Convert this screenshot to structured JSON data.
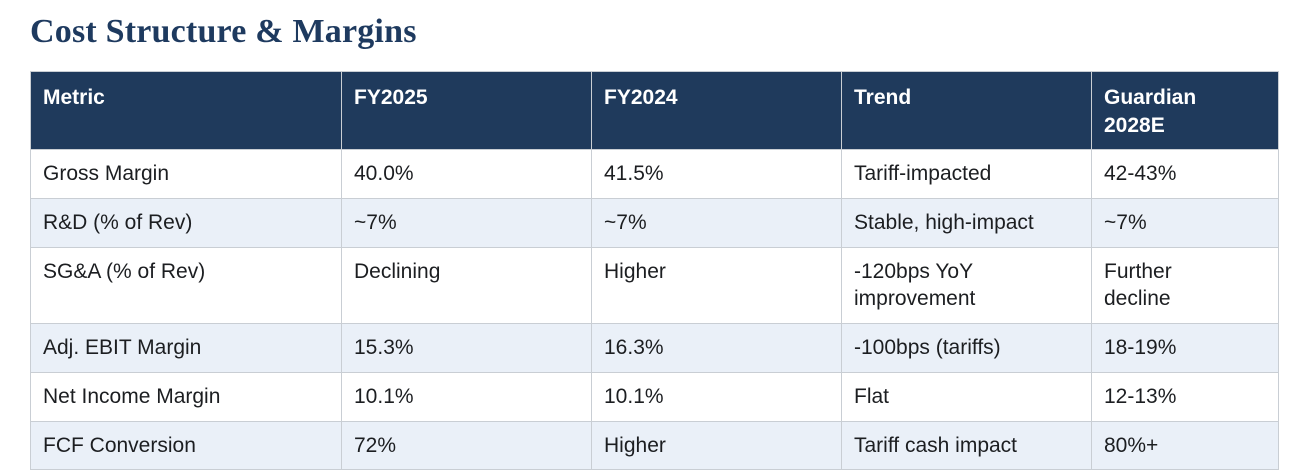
{
  "title": "Cost Structure & Margins",
  "colors": {
    "title_text": "#1e3a5f",
    "header_bg": "#1f3a5c",
    "header_text": "#ffffff",
    "alt_row_bg": "#eaf0f8",
    "body_text": "#1c1e21",
    "border": "#c9ced4"
  },
  "table": {
    "headers": {
      "metric": "Metric",
      "fy2025": "FY2025",
      "fy2024": "FY2024",
      "trend": "Trend",
      "guardian_2028e": "Guardian 2028E"
    },
    "rows": [
      {
        "metric": "Gross Margin",
        "fy2025": "40.0%",
        "fy2024": "41.5%",
        "trend": "Tariff-impacted",
        "guardian_2028e": "42-43%"
      },
      {
        "metric": "R&D (% of Rev)",
        "fy2025": "~7%",
        "fy2024": "~7%",
        "trend": "Stable, high-impact",
        "guardian_2028e": "~7%"
      },
      {
        "metric": "SG&A (% of Rev)",
        "fy2025": "Declining",
        "fy2024": "Higher",
        "trend": "-120bps YoY improvement",
        "guardian_2028e": "Further decline"
      },
      {
        "metric": "Adj. EBIT Margin",
        "fy2025": "15.3%",
        "fy2024": "16.3%",
        "trend": "-100bps (tariffs)",
        "guardian_2028e": "18-19%"
      },
      {
        "metric": "Net Income Margin",
        "fy2025": "10.1%",
        "fy2024": "10.1%",
        "trend": "Flat",
        "guardian_2028e": "12-13%"
      },
      {
        "metric": "FCF Conversion",
        "fy2025": "72%",
        "fy2024": "Higher",
        "trend": "Tariff cash impact",
        "guardian_2028e": "80%+"
      }
    ]
  }
}
